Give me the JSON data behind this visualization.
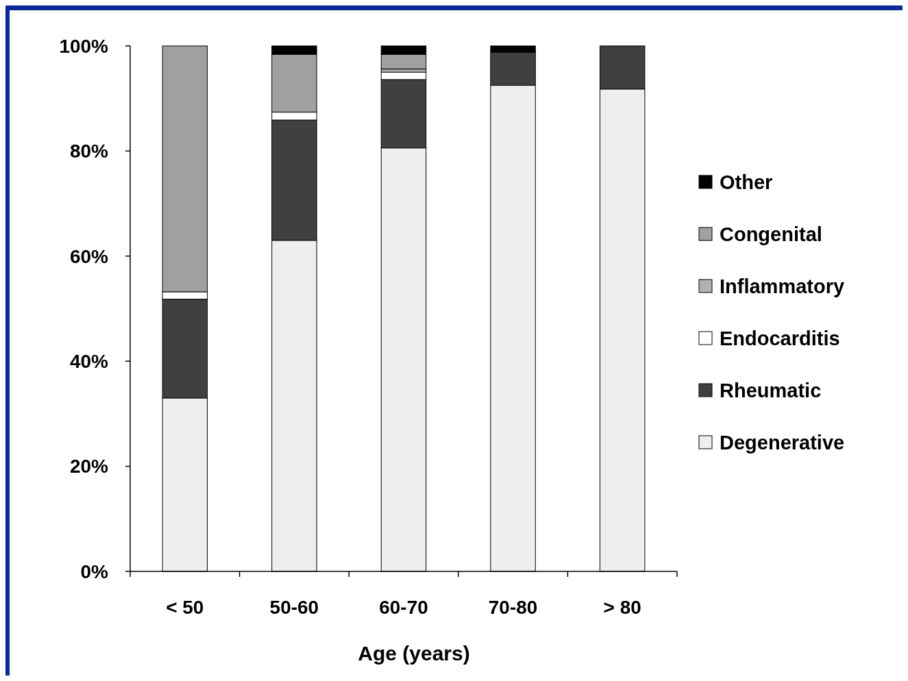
{
  "chart_data": {
    "type": "bar",
    "stacked": true,
    "xlabel": "Age (years)",
    "categories": [
      "< 50",
      "50-60",
      "60-70",
      "70-80",
      "> 80"
    ],
    "series": [
      {
        "name": "Degenerative",
        "color": "#eeeeee",
        "values": [
          33,
          63,
          80.6,
          92.5,
          91.8
        ]
      },
      {
        "name": "Rheumatic",
        "color": "#404040",
        "values": [
          18.8,
          22.9,
          13,
          6.3,
          8.2
        ]
      },
      {
        "name": "Endocarditis",
        "color": "#ffffff",
        "values": [
          1.4,
          1.5,
          1.4,
          0,
          0
        ]
      },
      {
        "name": "Inflammatory",
        "color": "#b2b2b2",
        "values": [
          0,
          0,
          0.6,
          0,
          0
        ]
      },
      {
        "name": "Congenital",
        "color": "#a0a0a0",
        "values": [
          46.8,
          11,
          2.8,
          0,
          0
        ]
      },
      {
        "name": "Other",
        "color": "#000000",
        "values": [
          0,
          1.6,
          1.6,
          1.2,
          0
        ]
      }
    ],
    "ylim": [
      0,
      100
    ],
    "yticks": [
      {
        "value": 0,
        "label": "0%"
      },
      {
        "value": 20,
        "label": "20%"
      },
      {
        "value": 40,
        "label": "40%"
      },
      {
        "value": 60,
        "label": "60%"
      },
      {
        "value": 80,
        "label": "80%"
      },
      {
        "value": 100,
        "label": "100%"
      }
    ],
    "grid": false,
    "legend": "right"
  }
}
